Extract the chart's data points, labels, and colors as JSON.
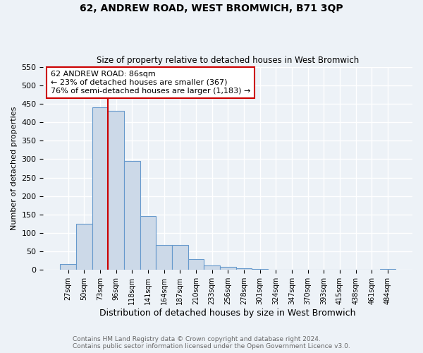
{
  "title": "62, ANDREW ROAD, WEST BROMWICH, B71 3QP",
  "subtitle": "Size of property relative to detached houses in West Bromwich",
  "xlabel": "Distribution of detached houses by size in West Bromwich",
  "ylabel": "Number of detached properties",
  "bin_labels": [
    "27sqm",
    "50sqm",
    "73sqm",
    "96sqm",
    "118sqm",
    "141sqm",
    "164sqm",
    "187sqm",
    "210sqm",
    "233sqm",
    "256sqm",
    "278sqm",
    "301sqm",
    "324sqm",
    "347sqm",
    "370sqm",
    "393sqm",
    "415sqm",
    "438sqm",
    "461sqm",
    "484sqm"
  ],
  "bar_values": [
    15,
    125,
    440,
    430,
    295,
    145,
    68,
    68,
    30,
    12,
    8,
    5,
    2,
    1,
    1,
    0,
    0,
    0,
    0,
    0,
    3
  ],
  "bar_color": "#ccd9e8",
  "bar_edge_color": "#6699cc",
  "vline_color": "#cc0000",
  "annotation_line1": "62 ANDREW ROAD: 86sqm",
  "annotation_line2": "← 23% of detached houses are smaller (367)",
  "annotation_line3": "76% of semi-detached houses are larger (1,183) →",
  "annotation_box_color": "#ffffff",
  "annotation_box_edge": "#cc0000",
  "ylim": [
    0,
    550
  ],
  "yticks": [
    0,
    50,
    100,
    150,
    200,
    250,
    300,
    350,
    400,
    450,
    500,
    550
  ],
  "footer_line1": "Contains HM Land Registry data © Crown copyright and database right 2024.",
  "footer_line2": "Contains public sector information licensed under the Open Government Licence v3.0.",
  "background_color": "#edf2f7",
  "plot_background_color": "#edf2f7",
  "grid_color": "#ffffff"
}
